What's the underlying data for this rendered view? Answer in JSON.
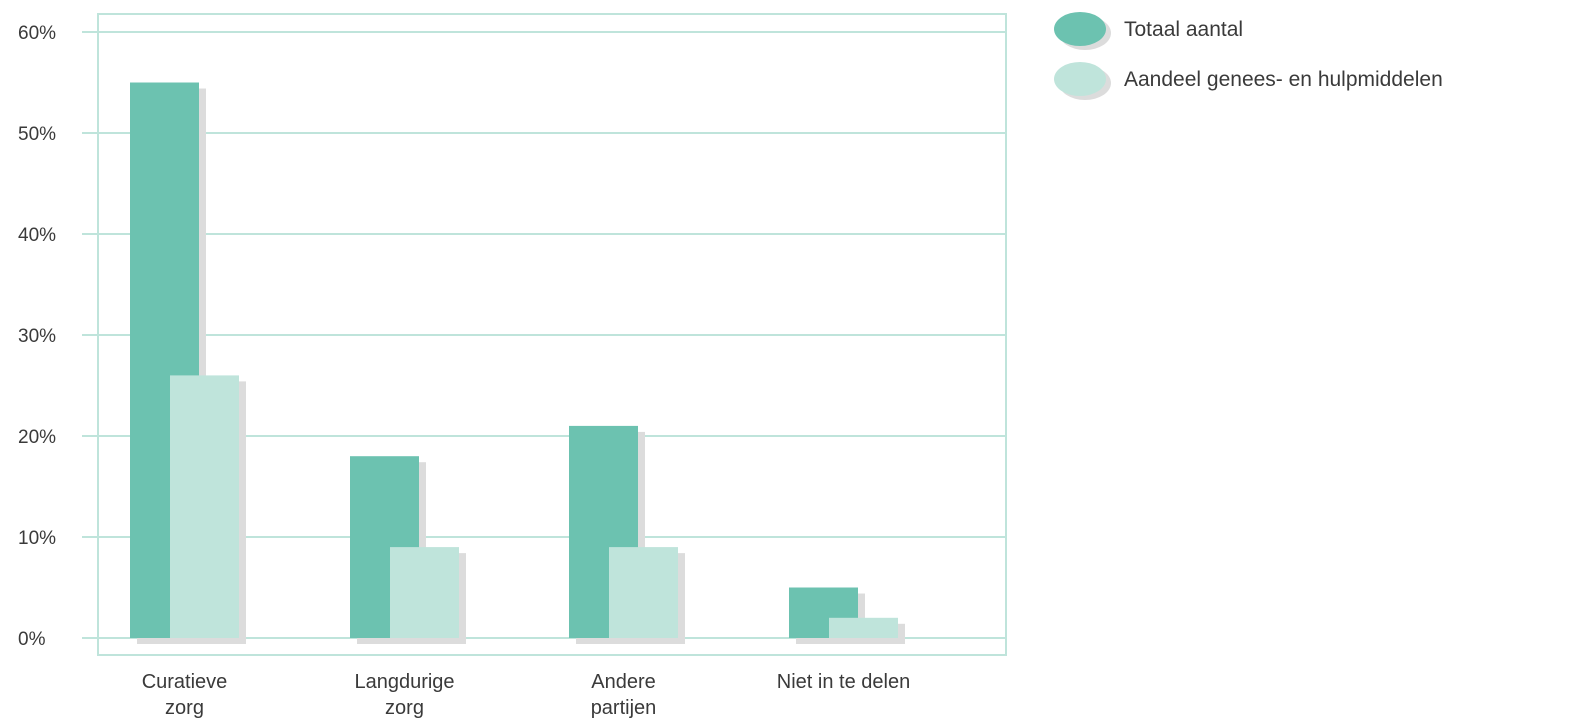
{
  "chart_data": {
    "type": "bar",
    "categories": [
      [
        "Curatieve",
        "zorg"
      ],
      [
        "Langdurige",
        "zorg"
      ],
      [
        "Andere",
        "partijen"
      ],
      [
        "Niet in te delen"
      ]
    ],
    "series": [
      {
        "name": "Totaal aantal",
        "values": [
          55,
          18,
          21,
          5
        ],
        "color": "#6cc2b0"
      },
      {
        "name": "Aandeel genees- en hulpmiddelen",
        "values": [
          26,
          9,
          9,
          2
        ],
        "color": "#bfe4db"
      }
    ],
    "yticks": [
      "0%",
      "10%",
      "20%",
      "30%",
      "40%",
      "50%",
      "60%"
    ],
    "ylim": [
      0,
      60
    ],
    "grid": true,
    "legend_position": "right",
    "frame_color": "#bfe4db",
    "shadow_color": "#dcdcdc"
  }
}
